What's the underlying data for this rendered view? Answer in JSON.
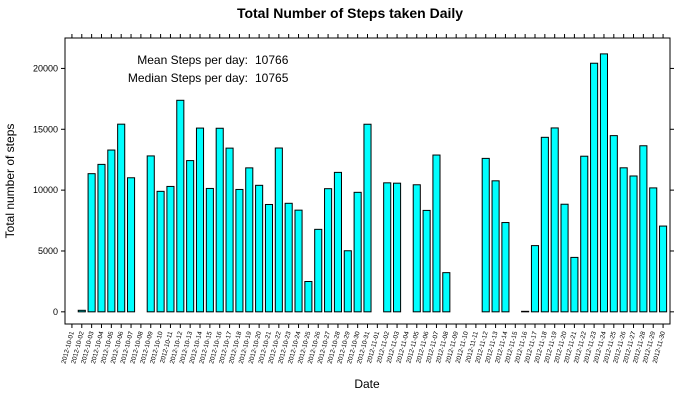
{
  "chart_data": {
    "type": "bar",
    "title": "Total Number of Steps taken Daily",
    "xlabel": "Date",
    "ylabel": "Total number of steps",
    "ylim": [
      -1000,
      22500
    ],
    "yticks": [
      0,
      5000,
      10000,
      15000,
      20000
    ],
    "grid": false,
    "annotations": {
      "mean_label": "Mean Steps per day:",
      "mean_value": "10766",
      "median_label": "Median Steps per day:",
      "median_value": "10765"
    },
    "bar_color": "#00ffff",
    "categories": [
      "2012-10-01",
      "2012-10-02",
      "2012-10-03",
      "2012-10-04",
      "2012-10-05",
      "2012-10-06",
      "2012-10-07",
      "2012-10-08",
      "2012-10-09",
      "2012-10-10",
      "2012-10-11",
      "2012-10-12",
      "2012-10-13",
      "2012-10-14",
      "2012-10-15",
      "2012-10-16",
      "2012-10-17",
      "2012-10-18",
      "2012-10-19",
      "2012-10-20",
      "2012-10-21",
      "2012-10-22",
      "2012-10-23",
      "2012-10-24",
      "2012-10-25",
      "2012-10-26",
      "2012-10-27",
      "2012-10-28",
      "2012-10-29",
      "2012-10-30",
      "2012-10-31",
      "2012-11-01",
      "2012-11-02",
      "2012-11-03",
      "2012-11-04",
      "2012-11-05",
      "2012-11-06",
      "2012-11-07",
      "2012-11-08",
      "2012-11-09",
      "2012-11-10",
      "2012-11-11",
      "2012-11-12",
      "2012-11-13",
      "2012-11-14",
      "2012-11-15",
      "2012-11-16",
      "2012-11-17",
      "2012-11-18",
      "2012-11-19",
      "2012-11-20",
      "2012-11-21",
      "2012-11-22",
      "2012-11-23",
      "2012-11-24",
      "2012-11-25",
      "2012-11-26",
      "2012-11-27",
      "2012-11-28",
      "2012-11-29",
      "2012-11-30"
    ],
    "values": [
      null,
      126,
      11352,
      12116,
      13294,
      15420,
      11015,
      null,
      12811,
      9900,
      10304,
      17382,
      12426,
      15098,
      10139,
      15084,
      13452,
      10056,
      11829,
      10395,
      8821,
      13460,
      8918,
      8355,
      2492,
      6778,
      10119,
      11458,
      5018,
      9819,
      15414,
      null,
      10600,
      10571,
      null,
      10439,
      8334,
      12883,
      3219,
      null,
      null,
      null,
      12608,
      10765,
      7336,
      null,
      41,
      5441,
      14339,
      15110,
      8841,
      4472,
      12787,
      20427,
      21194,
      14478,
      11834,
      11162,
      13646,
      10183,
      7047
    ]
  }
}
